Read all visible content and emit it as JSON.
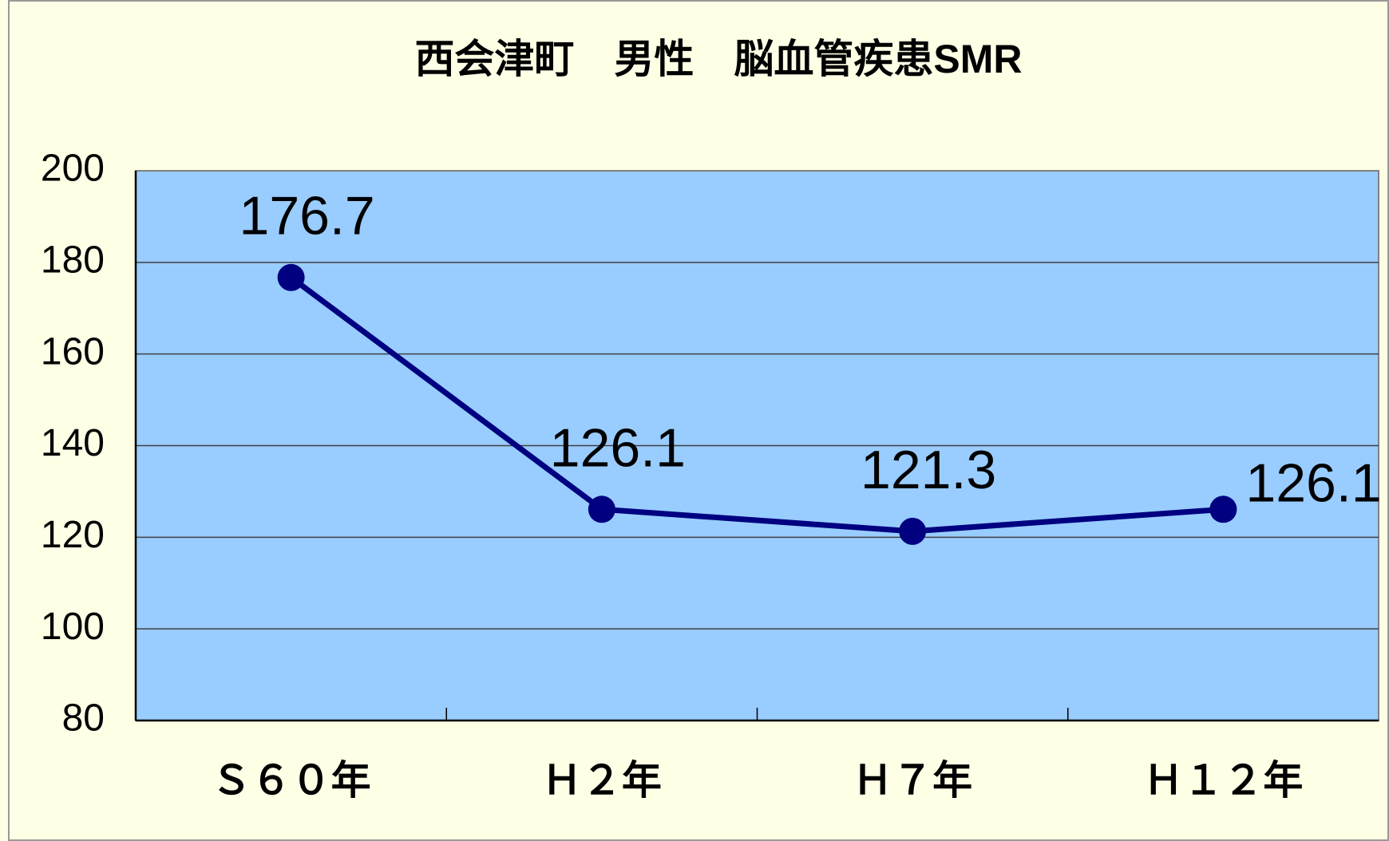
{
  "chart_data": {
    "type": "line",
    "title": "西会津町　男性　脳血管疾患SMR",
    "categories": [
      "Ｓ６０年",
      "Ｈ２年",
      "Ｈ７年",
      "Ｈ１２年"
    ],
    "values": [
      176.7,
      126.1,
      121.3,
      126.1
    ],
    "color": "#000080",
    "ylim": [
      80,
      200
    ],
    "yticks": [
      80,
      100,
      120,
      140,
      160,
      180,
      200
    ],
    "grid": true
  }
}
